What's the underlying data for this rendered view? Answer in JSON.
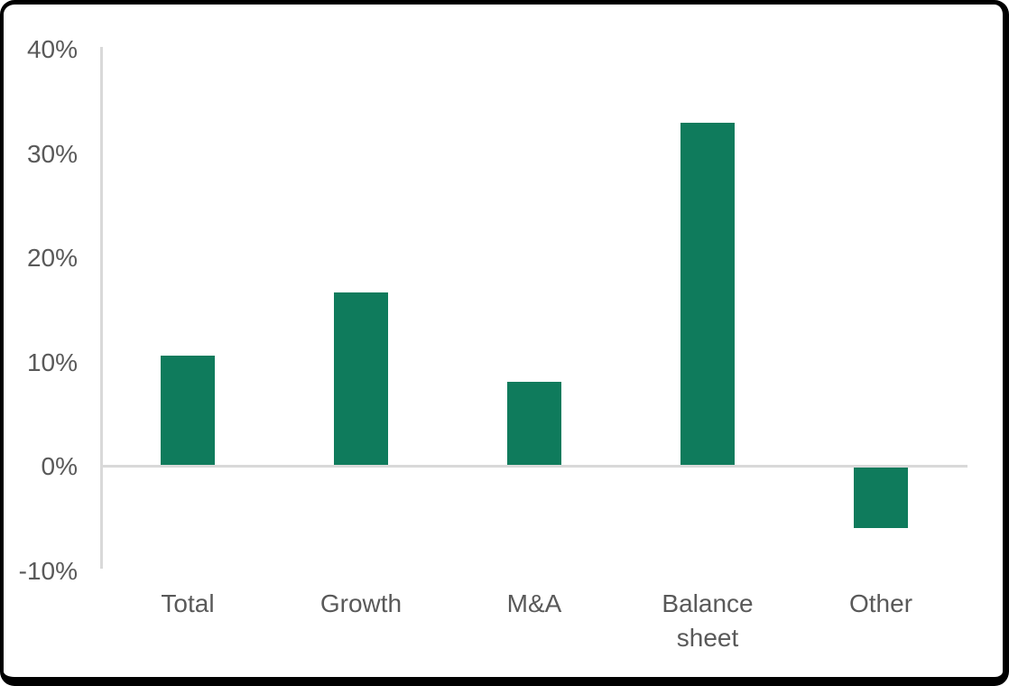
{
  "chart_data": {
    "type": "bar",
    "title": "",
    "xlabel": "",
    "ylabel": "",
    "categories": [
      "Total",
      "Growth",
      "M&A",
      "Balance sheet",
      "Other"
    ],
    "values": [
      10.5,
      16.5,
      8,
      32.8,
      -5.8
    ],
    "ylim": [
      -10,
      40
    ],
    "yticks": [
      {
        "label": "40%",
        "value": 40
      },
      {
        "label": "30%",
        "value": 30
      },
      {
        "label": "20%",
        "value": 20
      },
      {
        "label": "10%",
        "value": 10
      },
      {
        "label": "0%",
        "value": 0
      },
      {
        "label": "-10%",
        "value": -10
      }
    ],
    "legend": "none",
    "grid": "zero-baseline-only",
    "bar_color": "#0F7B5C",
    "axis_color": "#D9D9D9",
    "text_color": "#595959",
    "frame_color": "#000000"
  }
}
